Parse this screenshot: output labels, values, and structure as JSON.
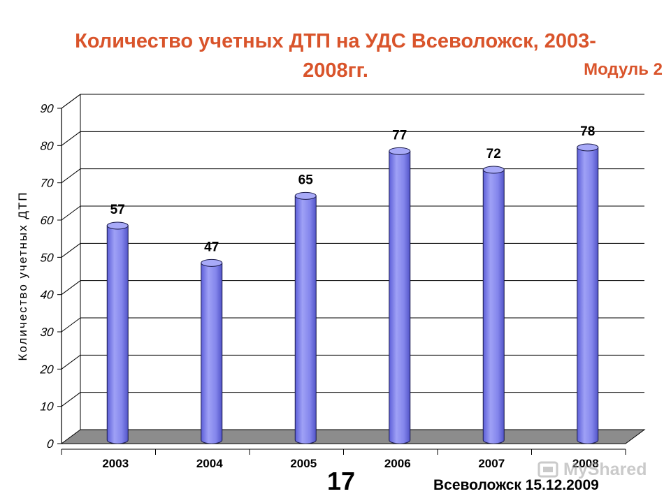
{
  "slide": {
    "title_line1": "Количество учетных ДТП на УДС Всеволожск, 2003-",
    "title_line2": "2008гг.",
    "module": "Модуль 2",
    "slide_number": "17",
    "footer": "Всеволожск 15.12.2009",
    "watermark": "MyShared"
  },
  "colors": {
    "title": "#d9542b",
    "bar_fill": "#8a8cf0",
    "floor": "#8c8c8c"
  },
  "chart_data": {
    "type": "bar",
    "title": "Количество учетных ДТП на УДС Всеволожск, 2003-2008гг.",
    "xlabel": "",
    "ylabel": "Количество учетных ДТП",
    "categories": [
      "2003",
      "2004",
      "2005",
      "2006",
      "2007",
      "2008"
    ],
    "values": [
      57,
      47,
      65,
      77,
      72,
      78
    ],
    "data_labels": [
      "57",
      "47",
      "65",
      "77",
      "72",
      "78"
    ],
    "yticks": [
      "0",
      "10",
      "20",
      "30",
      "40",
      "50",
      "60",
      "70",
      "80",
      "90"
    ],
    "ylim": [
      0,
      90
    ],
    "grid": true,
    "legend": "none",
    "style": "3d-cylinder"
  }
}
